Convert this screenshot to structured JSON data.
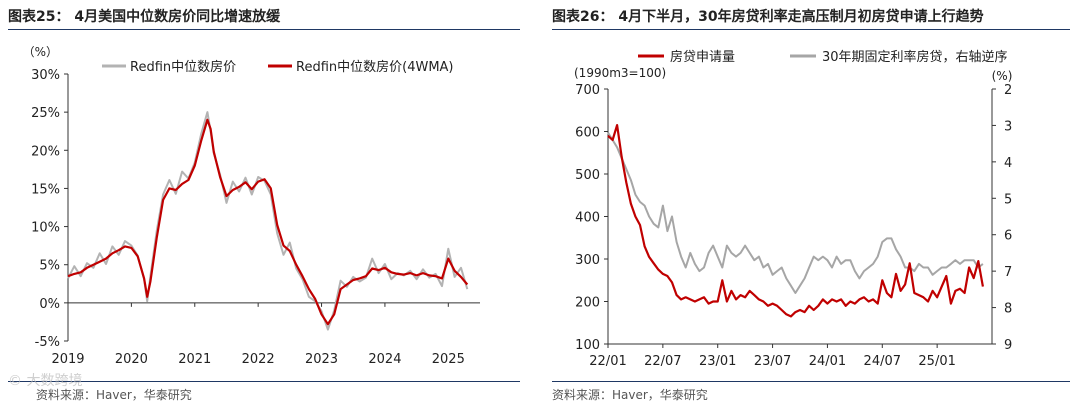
{
  "left": {
    "title": "图表25： 4月美国中位数房价同比增速放缓",
    "source": "资料来源：Haver，华泰研究",
    "watermark": "© 大数跨境",
    "chart_data": {
      "type": "line",
      "ylabel": "（%）",
      "ylim": [
        -5,
        30
      ],
      "xlim": [
        2019,
        2025.5
      ],
      "yticks": [
        "30%",
        "25%",
        "20%",
        "15%",
        "10%",
        "5%",
        "0%",
        "-5%"
      ],
      "ytick_values": [
        30,
        25,
        20,
        15,
        10,
        5,
        0,
        -5
      ],
      "xticks": [
        "2019",
        "2020",
        "2021",
        "2022",
        "2023",
        "2024",
        "2025"
      ],
      "xtick_values": [
        2019,
        2020,
        2021,
        2022,
        2023,
        2024,
        2025
      ],
      "series": [
        {
          "name": "Redfin中位数房价",
          "color": "#b3b3b3",
          "x": [
            2019.0,
            2019.1,
            2019.2,
            2019.3,
            2019.4,
            2019.5,
            2019.6,
            2019.7,
            2019.8,
            2019.9,
            2020.0,
            2020.1,
            2020.2,
            2020.25,
            2020.3,
            2020.4,
            2020.5,
            2020.6,
            2020.7,
            2020.8,
            2020.9,
            2021.0,
            2021.1,
            2021.2,
            2021.25,
            2021.3,
            2021.4,
            2021.5,
            2021.6,
            2021.7,
            2021.8,
            2021.9,
            2022.0,
            2022.1,
            2022.2,
            2022.3,
            2022.4,
            2022.5,
            2022.6,
            2022.7,
            2022.8,
            2022.9,
            2023.0,
            2023.1,
            2023.2,
            2023.3,
            2023.4,
            2023.5,
            2023.6,
            2023.7,
            2023.8,
            2023.9,
            2024.0,
            2024.1,
            2024.2,
            2024.3,
            2024.4,
            2024.5,
            2024.6,
            2024.7,
            2024.8,
            2024.9,
            2025.0,
            2025.1,
            2025.2,
            2025.3
          ],
          "values": [
            3.2,
            4.8,
            3.5,
            5.2,
            4.6,
            6.5,
            5.1,
            7.4,
            6.3,
            8.1,
            7.5,
            6.2,
            3.1,
            0.2,
            3.5,
            9.4,
            14.2,
            16.1,
            14.3,
            17.2,
            16.3,
            18.4,
            22.1,
            25.0,
            22.5,
            19.6,
            16.8,
            13.1,
            15.9,
            14.6,
            16.4,
            14.2,
            16.5,
            16.0,
            14.2,
            9.1,
            6.3,
            7.9,
            4.5,
            3.1,
            0.8,
            0.2,
            -1.1,
            -3.5,
            -1.0,
            2.9,
            2.1,
            3.4,
            2.8,
            3.3,
            5.8,
            3.9,
            5.1,
            3.1,
            3.9,
            3.6,
            4.2,
            3.1,
            4.4,
            3.3,
            3.8,
            2.2,
            7.1,
            3.4,
            4.6,
            1.8
          ]
        },
        {
          "name": "Redfin中位数房价(4WMA)",
          "color": "#c00000",
          "x": [
            2019.0,
            2019.1,
            2019.2,
            2019.3,
            2019.4,
            2019.5,
            2019.6,
            2019.7,
            2019.8,
            2019.9,
            2020.0,
            2020.1,
            2020.2,
            2020.25,
            2020.3,
            2020.4,
            2020.5,
            2020.6,
            2020.7,
            2020.8,
            2020.9,
            2021.0,
            2021.1,
            2021.2,
            2021.25,
            2021.3,
            2021.4,
            2021.5,
            2021.6,
            2021.7,
            2021.8,
            2021.9,
            2022.0,
            2022.1,
            2022.2,
            2022.3,
            2022.4,
            2022.5,
            2022.6,
            2022.7,
            2022.8,
            2022.9,
            2023.0,
            2023.1,
            2023.2,
            2023.3,
            2023.4,
            2023.5,
            2023.6,
            2023.7,
            2023.8,
            2023.9,
            2024.0,
            2024.1,
            2024.2,
            2024.3,
            2024.4,
            2024.5,
            2024.6,
            2024.7,
            2024.8,
            2024.9,
            2025.0,
            2025.1,
            2025.2,
            2025.3
          ],
          "values": [
            3.5,
            3.8,
            4.0,
            4.6,
            5.0,
            5.4,
            5.8,
            6.5,
            6.9,
            7.4,
            7.2,
            6.1,
            3.2,
            0.8,
            2.8,
            8.5,
            13.5,
            15.0,
            14.8,
            15.6,
            16.1,
            18.0,
            21.2,
            24.0,
            22.8,
            19.8,
            16.5,
            14.0,
            14.8,
            15.2,
            15.8,
            14.9,
            15.9,
            16.2,
            15.0,
            10.2,
            7.5,
            6.8,
            5.0,
            3.5,
            1.8,
            0.5,
            -1.5,
            -2.8,
            -1.5,
            1.8,
            2.4,
            3.0,
            3.2,
            3.5,
            4.5,
            4.3,
            4.6,
            4.0,
            3.8,
            3.7,
            3.9,
            3.6,
            3.9,
            3.6,
            3.5,
            3.2,
            5.8,
            4.2,
            3.4,
            2.4
          ]
        }
      ]
    }
  },
  "right": {
    "title": "图表26： 4月下半月，30年房贷利率走高压制月初房贷申请上行趋势",
    "source": "资料来源：Haver，华泰研究",
    "chart_data": {
      "type": "line",
      "ylabel_left": "(1990m3=100)",
      "ylabel_right": "(%)",
      "ylim_left": [
        100,
        700
      ],
      "ylim_right_inverted": [
        9,
        2
      ],
      "yticks_left": [
        "700",
        "600",
        "500",
        "400",
        "300",
        "200",
        "100"
      ],
      "ytick_values_left": [
        700,
        600,
        500,
        400,
        300,
        200,
        100
      ],
      "yticks_right": [
        "2",
        "3",
        "4",
        "5",
        "6",
        "7",
        "8",
        "9"
      ],
      "ytick_values_right": [
        2,
        3,
        4,
        5,
        6,
        7,
        8,
        9
      ],
      "xlim": [
        0,
        42
      ],
      "xticks": [
        "22/01",
        "22/07",
        "23/01",
        "23/07",
        "24/01",
        "24/07",
        "25/01"
      ],
      "xtick_values": [
        0,
        6,
        12,
        18,
        24,
        30,
        36
      ],
      "series": [
        {
          "name": "房贷申请量",
          "color": "#c00000",
          "axis": "left",
          "x": [
            0,
            0.5,
            1,
            1.5,
            2,
            2.5,
            3,
            3.5,
            4,
            4.5,
            5,
            5.5,
            6,
            6.5,
            7,
            7.5,
            8,
            8.5,
            9,
            9.5,
            10,
            10.5,
            11,
            11.5,
            12,
            12.5,
            13,
            13.5,
            14,
            14.5,
            15,
            15.5,
            16,
            16.5,
            17,
            17.5,
            18,
            18.5,
            19,
            19.5,
            20,
            20.5,
            21,
            21.5,
            22,
            22.5,
            23,
            23.5,
            24,
            24.5,
            25,
            25.5,
            26,
            26.5,
            27,
            27.5,
            28,
            28.5,
            29,
            29.5,
            30,
            30.5,
            31,
            31.5,
            32,
            32.5,
            33,
            33.5,
            34,
            34.5,
            35,
            35.5,
            36,
            36.5,
            37,
            37.5,
            38,
            38.5,
            39,
            39.5,
            40,
            40.5,
            41
          ],
          "values": [
            590,
            580,
            615,
            540,
            480,
            430,
            400,
            380,
            330,
            305,
            290,
            275,
            265,
            260,
            245,
            215,
            205,
            210,
            205,
            200,
            205,
            210,
            195,
            200,
            200,
            250,
            200,
            225,
            205,
            215,
            210,
            225,
            215,
            205,
            200,
            190,
            195,
            190,
            180,
            170,
            165,
            175,
            180,
            175,
            190,
            180,
            190,
            205,
            195,
            205,
            200,
            205,
            190,
            200,
            195,
            205,
            210,
            200,
            205,
            195,
            250,
            220,
            210,
            265,
            225,
            240,
            290,
            220,
            215,
            210,
            200,
            225,
            210,
            235,
            260,
            195,
            225,
            230,
            220,
            280,
            255,
            295,
            235
          ]
        },
        {
          "name": "30年期固定利率房贷，右轴逆序",
          "color": "#a6a6a6",
          "axis": "right",
          "x": [
            0,
            0.5,
            1,
            1.5,
            2,
            2.5,
            3,
            3.5,
            4,
            4.5,
            5,
            5.5,
            6,
            6.5,
            7,
            7.5,
            8,
            8.5,
            9,
            9.5,
            10,
            10.5,
            11,
            11.5,
            12,
            12.5,
            13,
            13.5,
            14,
            14.5,
            15,
            15.5,
            16,
            16.5,
            17,
            17.5,
            18,
            18.5,
            19,
            19.5,
            20,
            20.5,
            21,
            21.5,
            22,
            22.5,
            23,
            23.5,
            24,
            24.5,
            25,
            25.5,
            26,
            26.5,
            27,
            27.5,
            28,
            28.5,
            29,
            29.5,
            30,
            30.5,
            31,
            31.5,
            32,
            32.5,
            33,
            33.5,
            34,
            34.5,
            35,
            35.5,
            36,
            36.5,
            37,
            37.5,
            38,
            38.5,
            39,
            39.5,
            40,
            40.5,
            41
          ],
          "values": [
            3.2,
            3.4,
            3.6,
            3.9,
            4.2,
            4.5,
            4.9,
            5.1,
            5.2,
            5.5,
            5.7,
            5.8,
            5.2,
            5.9,
            5.5,
            6.2,
            6.6,
            6.9,
            6.5,
            6.8,
            7.0,
            6.9,
            6.5,
            6.3,
            6.6,
            6.9,
            6.3,
            6.5,
            6.6,
            6.5,
            6.3,
            6.5,
            6.7,
            6.6,
            6.9,
            6.8,
            7.1,
            7.0,
            6.9,
            7.2,
            7.4,
            7.6,
            7.4,
            7.2,
            6.9,
            6.6,
            6.7,
            6.6,
            6.7,
            6.9,
            6.6,
            6.8,
            6.7,
            6.7,
            7.0,
            7.2,
            7.0,
            6.9,
            6.8,
            6.6,
            6.2,
            6.1,
            6.1,
            6.4,
            6.6,
            6.9,
            6.9,
            7.0,
            6.8,
            6.9,
            6.9,
            7.1,
            7.0,
            6.9,
            6.9,
            6.8,
            6.7,
            6.8,
            6.7,
            6.7,
            6.7,
            6.9,
            6.8
          ]
        }
      ]
    }
  }
}
